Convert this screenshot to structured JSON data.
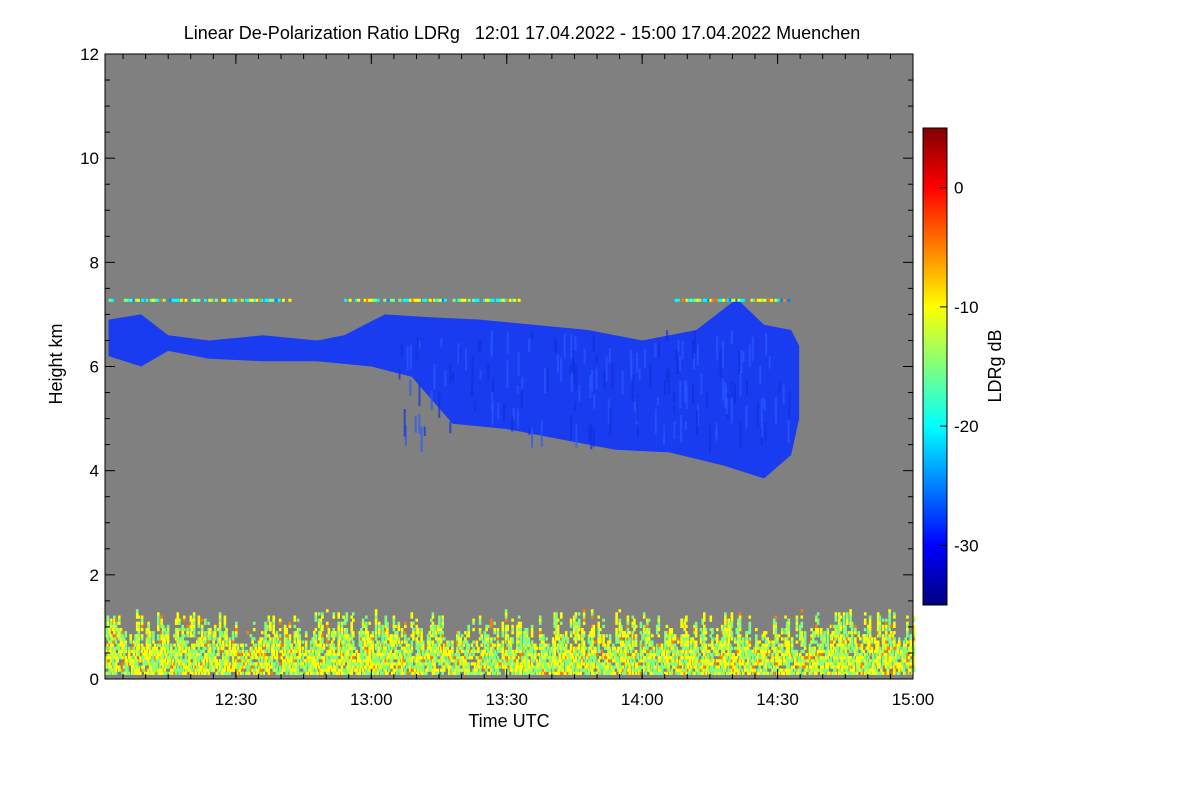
{
  "chart_data": {
    "type": "heatmap",
    "title": "Linear De-Polarization Ratio LDRg   12:01 17.04.2022 - 15:00 17.04.2022 Muenchen",
    "xlabel": "Time UTC",
    "ylabel": "Height km",
    "x_range_hours": [
      12.0167,
      15.0
    ],
    "y_range_km": [
      0,
      12
    ],
    "x_ticks": [
      {
        "value": 12.5,
        "label": "12:30"
      },
      {
        "value": 13.0,
        "label": "13:00"
      },
      {
        "value": 13.5,
        "label": "13:30"
      },
      {
        "value": 14.0,
        "label": "14:00"
      },
      {
        "value": 14.5,
        "label": "14:30"
      },
      {
        "value": 15.0,
        "label": "15:00"
      }
    ],
    "y_ticks": [
      {
        "value": 0,
        "label": "0"
      },
      {
        "value": 2,
        "label": "2"
      },
      {
        "value": 4,
        "label": "4"
      },
      {
        "value": 6,
        "label": "6"
      },
      {
        "value": 8,
        "label": "8"
      },
      {
        "value": 10,
        "label": "10"
      },
      {
        "value": 12,
        "label": "12"
      }
    ],
    "background_color": "#808080",
    "colorbar": {
      "label": "LDRg dB",
      "range": [
        -35,
        5
      ],
      "ticks": [
        {
          "value": 0,
          "label": "0"
        },
        {
          "value": -10,
          "label": "-10"
        },
        {
          "value": -20,
          "label": "-20"
        },
        {
          "value": -30,
          "label": "-30"
        }
      ],
      "colors": [
        "#00007f",
        "#0000ff",
        "#007fff",
        "#00ffff",
        "#7fff7f",
        "#ffff00",
        "#ff7f00",
        "#ff0000",
        "#7f0000"
      ]
    },
    "cloud_layer": {
      "description_ldr_db": -30,
      "color": "#1a3cf0",
      "top_km": [
        [
          12.03,
          6.9
        ],
        [
          12.15,
          7.0
        ],
        [
          12.25,
          6.6
        ],
        [
          12.4,
          6.5
        ],
        [
          12.6,
          6.6
        ],
        [
          12.8,
          6.5
        ],
        [
          12.9,
          6.6
        ],
        [
          13.05,
          7.0
        ],
        [
          13.2,
          6.95
        ],
        [
          13.4,
          6.9
        ],
        [
          13.6,
          6.8
        ],
        [
          13.8,
          6.7
        ],
        [
          14.0,
          6.5
        ],
        [
          14.2,
          6.7
        ],
        [
          14.35,
          7.3
        ],
        [
          14.45,
          6.8
        ],
        [
          14.55,
          6.7
        ],
        [
          14.58,
          6.4
        ]
      ],
      "base_km": [
        [
          12.03,
          6.2
        ],
        [
          12.15,
          6.0
        ],
        [
          12.25,
          6.3
        ],
        [
          12.4,
          6.15
        ],
        [
          12.6,
          6.1
        ],
        [
          12.8,
          6.1
        ],
        [
          13.0,
          6.0
        ],
        [
          13.15,
          5.8
        ],
        [
          13.3,
          4.9
        ],
        [
          13.5,
          4.8
        ],
        [
          13.7,
          4.6
        ],
        [
          13.9,
          4.4
        ],
        [
          14.1,
          4.35
        ],
        [
          14.3,
          4.1
        ],
        [
          14.45,
          3.85
        ],
        [
          14.55,
          4.3
        ],
        [
          14.58,
          5.0
        ]
      ]
    },
    "thin_layer": {
      "height_km": 7.3,
      "segments_hours": [
        [
          12.03,
          12.7
        ],
        [
          12.9,
          13.55
        ],
        [
          14.12,
          14.55
        ]
      ]
    },
    "boundary_layer": {
      "top_km": 1.3,
      "mean_height_km": 0.8
    }
  }
}
